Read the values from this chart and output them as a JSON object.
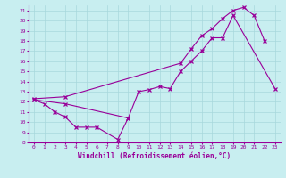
{
  "xlabel": "Windchill (Refroidissement éolien,°C)",
  "bg_color": "#c8eef0",
  "grid_color": "#a8d8dc",
  "line_color": "#990099",
  "xlim": [
    -0.5,
    23.5
  ],
  "ylim": [
    8,
    21.5
  ],
  "xticks": [
    0,
    1,
    2,
    3,
    4,
    5,
    6,
    7,
    8,
    9,
    10,
    11,
    12,
    13,
    14,
    15,
    16,
    17,
    18,
    19,
    20,
    21,
    22,
    23
  ],
  "yticks": [
    8,
    9,
    10,
    11,
    12,
    13,
    14,
    15,
    16,
    17,
    18,
    19,
    20,
    21
  ],
  "series": [
    {
      "x": [
        0,
        1,
        2,
        3,
        4,
        5,
        6,
        8,
        9
      ],
      "y": [
        12.2,
        11.8,
        11.0,
        10.5,
        9.5,
        9.5,
        9.5,
        8.3,
        10.4
      ]
    },
    {
      "x": [
        0,
        3,
        9,
        10,
        11,
        12,
        13,
        14,
        15,
        16,
        17,
        18,
        19,
        23
      ],
      "y": [
        12.2,
        11.8,
        10.4,
        13.0,
        13.2,
        13.5,
        13.3,
        15.0,
        16.0,
        17.0,
        18.3,
        18.3,
        20.5,
        13.3
      ]
    },
    {
      "x": [
        0,
        3,
        14,
        15,
        16,
        17,
        18,
        19,
        20,
        21,
        22
      ],
      "y": [
        12.3,
        12.5,
        15.8,
        17.2,
        18.5,
        19.2,
        20.2,
        21.0,
        21.3,
        20.5,
        18.0
      ]
    }
  ]
}
